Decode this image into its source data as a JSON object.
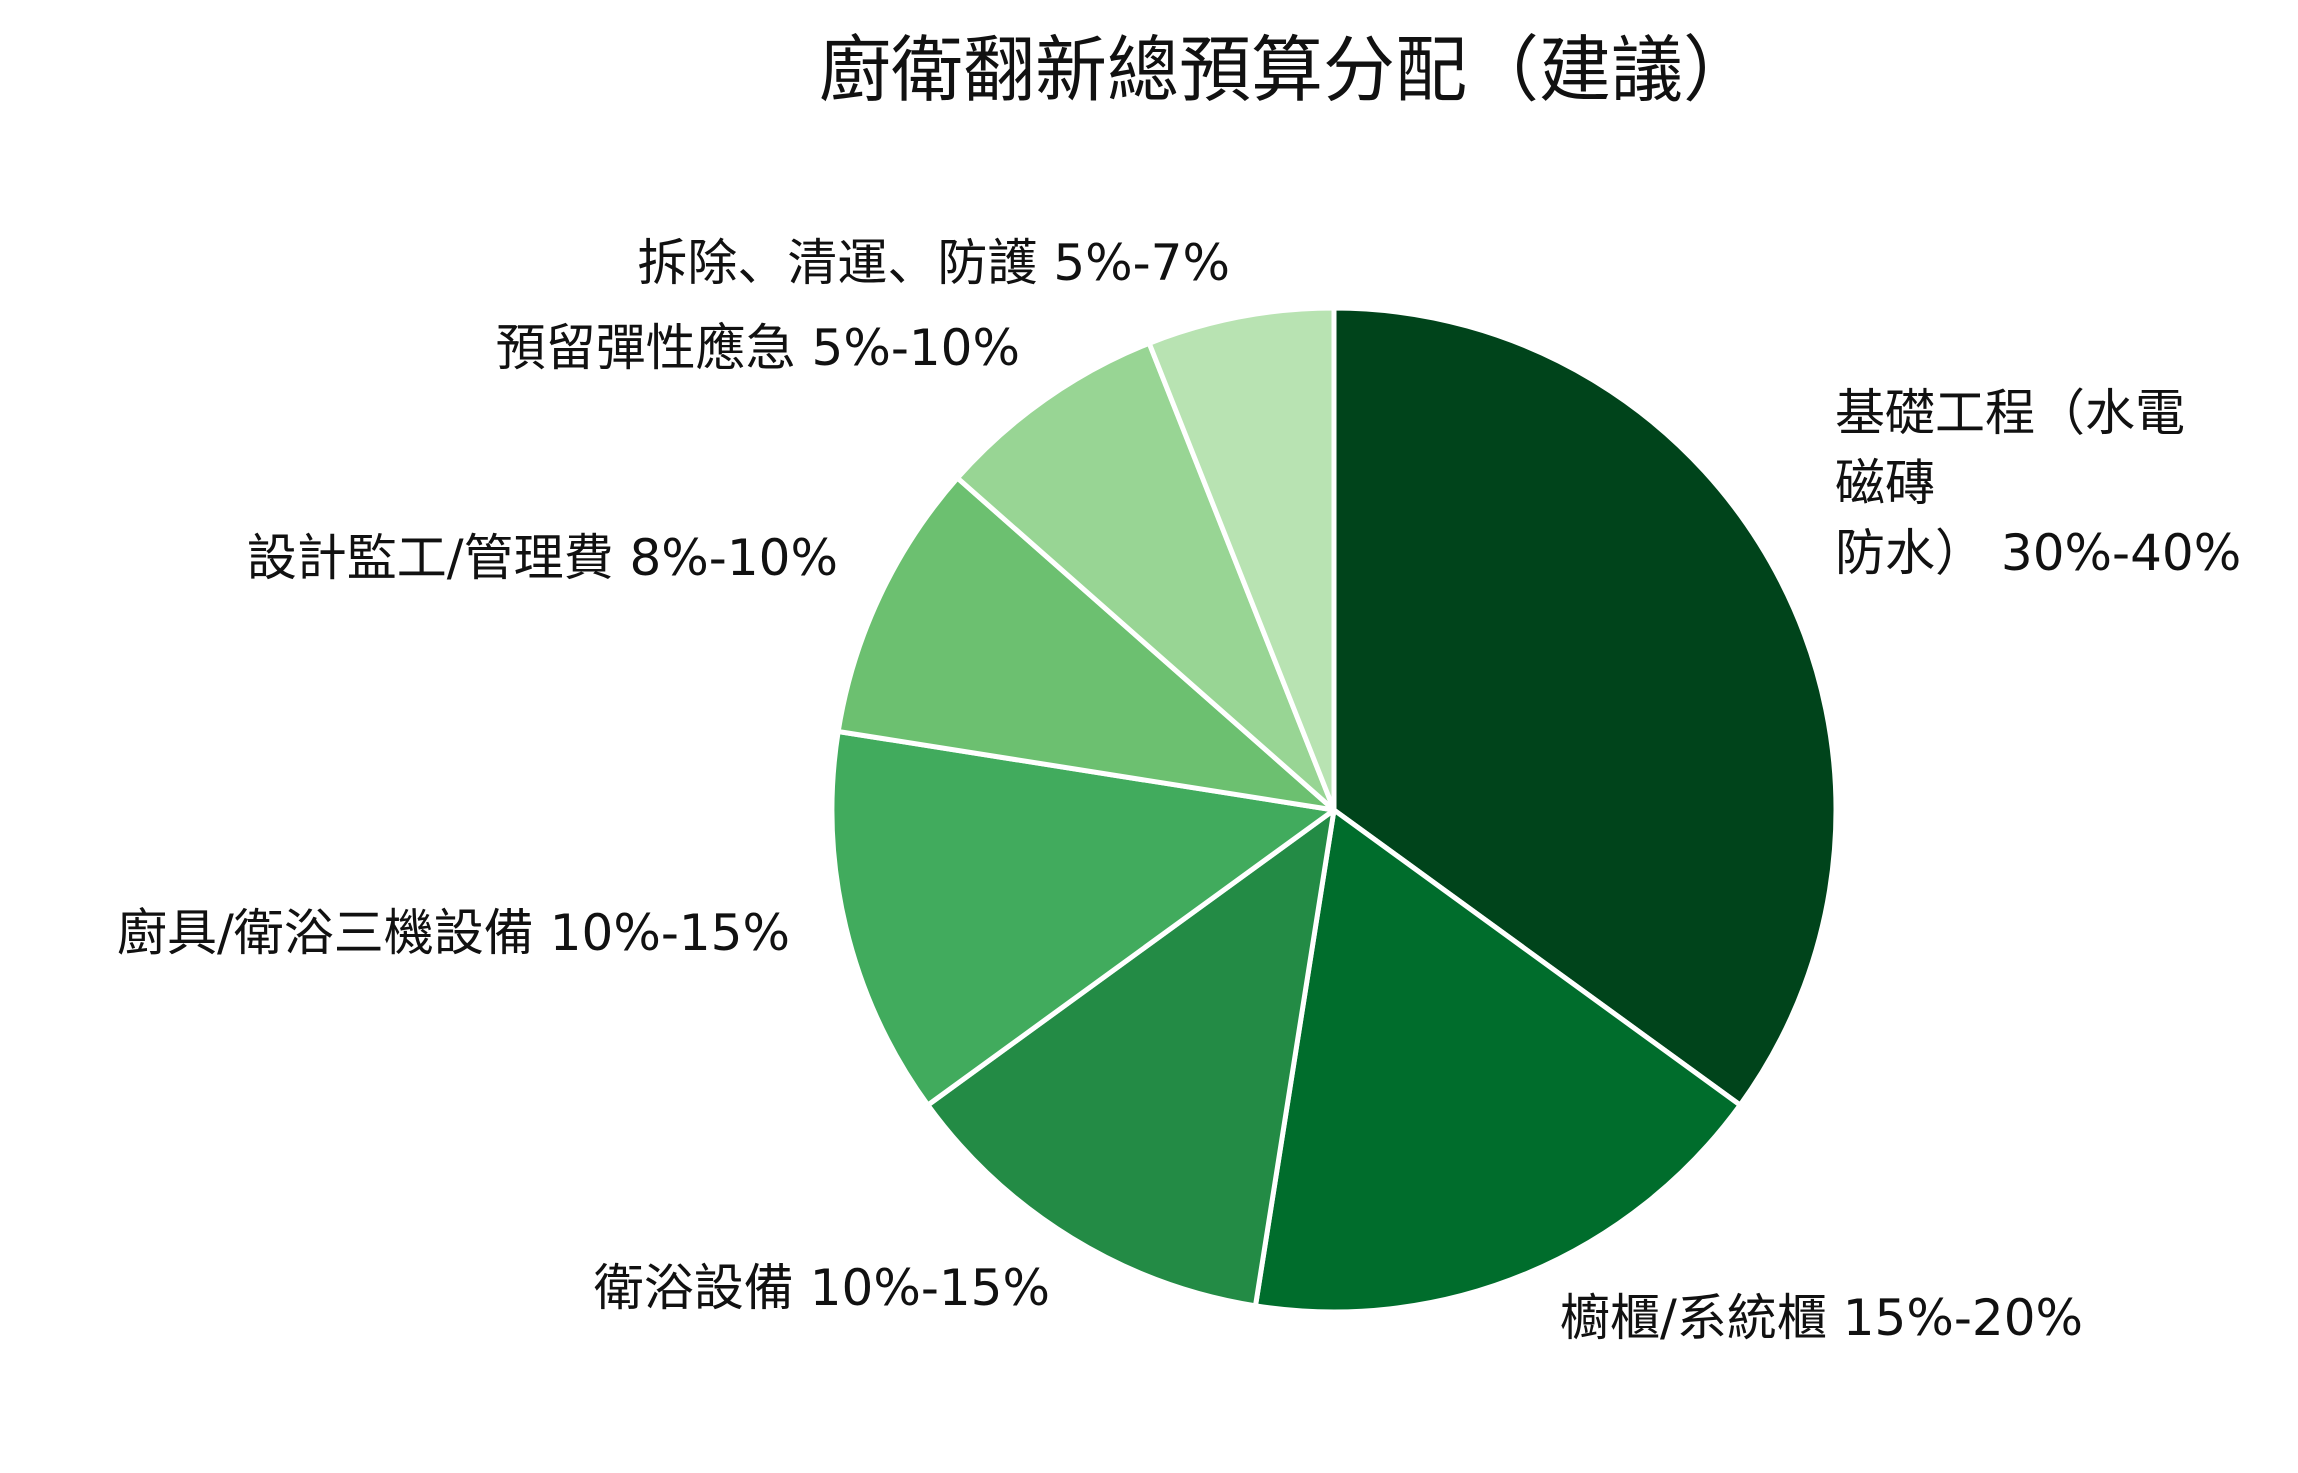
{
  "chart_data": {
    "type": "pie",
    "title": "廚衛翻新總預算分配（建議）",
    "start_angle_deg": 0,
    "direction": "clockwise",
    "slice_colors": [
      "#00441b",
      "#006d2c",
      "#238b45",
      "#41ab5d",
      "#6cc070",
      "#98d594",
      "#b8e3b2"
    ],
    "edge_color": "#ffffff",
    "slices": [
      {
        "label_lines": [
          "基礎工程（水電",
          "磁磚",
          "防水） 30%-40%"
        ],
        "value": 35
      },
      {
        "label_lines": [
          "櫥櫃/系統櫃 15%-20%"
        ],
        "value": 17.5
      },
      {
        "label_lines": [
          "衛浴設備 10%-15%"
        ],
        "value": 12.5
      },
      {
        "label_lines": [
          "廚具/衛浴三機設備 10%-15%"
        ],
        "value": 12.5
      },
      {
        "label_lines": [
          "設計監工/管理費 8%-10%"
        ],
        "value": 9
      },
      {
        "label_lines": [
          "預留彈性應急 5%-10%"
        ],
        "value": 7.5
      },
      {
        "label_lines": [
          "拆除、清運、防護 5%-7%"
        ],
        "value": 6
      }
    ]
  }
}
